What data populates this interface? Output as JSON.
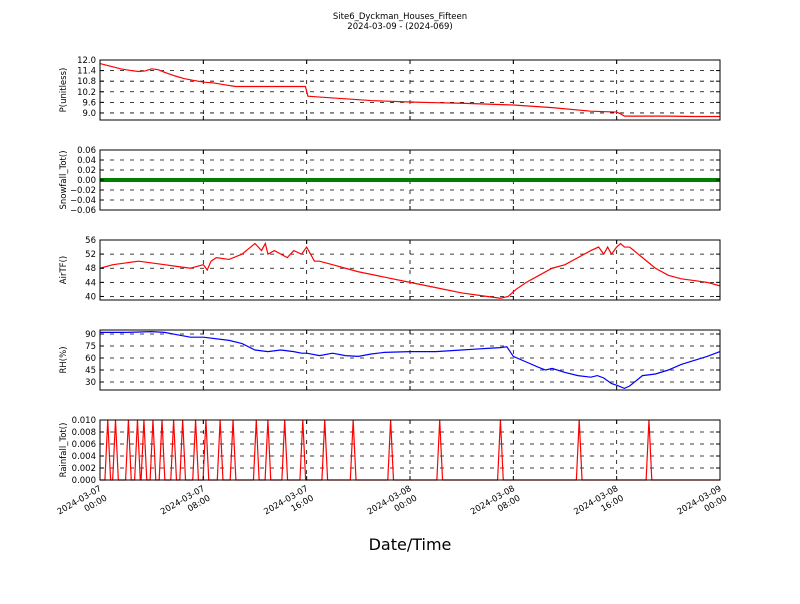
{
  "figure": {
    "title_line1": "Site6_Dyckman_Houses_Fifteen",
    "title_line2": "2024-03-09 - (2024-069)",
    "xlabel": "Date/Time",
    "x_ticks": [
      {
        "hour": 0,
        "line1": "2024-03-07",
        "line2": "00:00"
      },
      {
        "hour": 8,
        "line1": "2024-03-07",
        "line2": "08:00"
      },
      {
        "hour": 16,
        "line1": "2024-03-07",
        "line2": "16:00"
      },
      {
        "hour": 24,
        "line1": "2024-03-08",
        "line2": "00:00"
      },
      {
        "hour": 32,
        "line1": "2024-03-08",
        "line2": "08:00"
      },
      {
        "hour": 40,
        "line1": "2024-03-08",
        "line2": "16:00"
      },
      {
        "hour": 48,
        "line1": "2024-03-09",
        "line2": "00:00"
      }
    ]
  },
  "chart_data": [
    {
      "type": "line",
      "ylabel": "P(unitless)",
      "color": "#ff0000",
      "ylim": [
        8.6,
        12.0
      ],
      "yticks": [
        9.0,
        9.6,
        10.2,
        10.8,
        11.4,
        12.0
      ],
      "ytick_labels": [
        "9.0",
        "9.6",
        "10.2",
        "10.8",
        "11.4",
        "12.0"
      ],
      "x_hours": [
        0,
        0.8,
        1.6,
        2.4,
        3,
        3.5,
        4,
        4.5,
        5,
        5.8,
        6.5,
        7.2,
        8,
        8.8,
        9.6,
        10.5,
        12,
        14,
        15.9,
        16.1,
        17,
        19,
        21,
        24,
        26,
        28,
        30,
        32,
        35,
        38,
        40,
        40.3,
        40.6,
        41,
        44,
        46,
        48
      ],
      "values": [
        11.8,
        11.65,
        11.5,
        11.4,
        11.35,
        11.38,
        11.5,
        11.45,
        11.3,
        11.1,
        10.95,
        10.85,
        10.75,
        10.7,
        10.6,
        10.5,
        10.5,
        10.5,
        10.5,
        9.95,
        9.9,
        9.8,
        9.7,
        9.62,
        9.58,
        9.55,
        9.5,
        9.45,
        9.3,
        9.1,
        9.05,
        8.95,
        8.82,
        8.82,
        8.82,
        8.8,
        8.8
      ]
    },
    {
      "type": "line",
      "ylabel": "Snowfall_Tot()",
      "color": "#008000",
      "ylim": [
        -0.06,
        0.06
      ],
      "yticks": [
        -0.06,
        -0.04,
        -0.02,
        0.0,
        0.02,
        0.04,
        0.06
      ],
      "ytick_labels": [
        "−0.06",
        "−0.04",
        "−0.02",
        "0.00",
        "0.02",
        "0.04",
        "0.06"
      ],
      "x_hours": [
        0,
        48
      ],
      "values": [
        0,
        0
      ]
    },
    {
      "type": "line",
      "ylabel": "AirTF()",
      "color": "#ff0000",
      "ylim": [
        39,
        56
      ],
      "yticks": [
        40,
        44,
        48,
        52,
        56
      ],
      "ytick_labels": [
        "40",
        "44",
        "48",
        "52",
        "56"
      ],
      "x_hours": [
        0,
        1,
        2,
        3,
        4,
        5,
        6,
        7,
        7.5,
        8,
        8.3,
        8.6,
        9,
        10,
        11,
        12,
        12.5,
        12.8,
        13,
        13.5,
        14,
        14.5,
        15,
        15.6,
        16,
        16.3,
        16.6,
        17,
        18,
        19,
        20,
        22,
        24,
        26,
        28,
        30,
        31,
        31.6,
        32.2,
        33,
        34,
        35,
        36,
        37,
        38,
        38.6,
        39,
        39.3,
        39.6,
        40,
        40.3,
        40.6,
        41,
        42,
        43,
        44,
        45,
        46,
        47,
        48
      ],
      "values": [
        48,
        49,
        49.5,
        50,
        49.5,
        49,
        48.5,
        48,
        48.5,
        49,
        47.5,
        50,
        51,
        50.5,
        52,
        55,
        53,
        55,
        52,
        53,
        52,
        51,
        53,
        52,
        54,
        52,
        50,
        50,
        49,
        48,
        47,
        45.5,
        44,
        42.5,
        41,
        40,
        39.5,
        40,
        42,
        44,
        46,
        48,
        49,
        51,
        53,
        54,
        52,
        54,
        52,
        54,
        55,
        54,
        54,
        51,
        48,
        46,
        45,
        44.5,
        44,
        43
      ]
    },
    {
      "type": "line",
      "ylabel": "RH(%)",
      "color": "#0000ff",
      "ylim": [
        20,
        95
      ],
      "yticks": [
        30,
        45,
        60,
        75,
        90
      ],
      "ytick_labels": [
        "30",
        "45",
        "60",
        "75",
        "90"
      ],
      "x_hours": [
        0,
        2,
        4,
        5,
        6,
        7,
        8,
        10,
        11,
        12,
        13,
        14,
        15,
        15.6,
        16,
        17,
        18,
        19,
        20,
        21,
        22,
        24,
        26,
        28,
        29,
        30,
        31,
        31.5,
        32,
        33,
        34,
        34.5,
        35,
        36,
        37,
        38,
        38.5,
        39,
        39.6,
        40,
        40.6,
        41,
        42,
        43,
        44,
        45,
        46,
        47,
        48
      ],
      "values": [
        92,
        92,
        93,
        92,
        89,
        86,
        86,
        82,
        78,
        70,
        68,
        70,
        68,
        66,
        66,
        63,
        66,
        63,
        62,
        65,
        67,
        68,
        68,
        70,
        71,
        72,
        73,
        74,
        62,
        55,
        48,
        45,
        47,
        42,
        38,
        36,
        38,
        35,
        28,
        26,
        22,
        25,
        38,
        40,
        45,
        52,
        57,
        62,
        68
      ]
    },
    {
      "type": "line",
      "ylabel": "Rainfall_Tot()",
      "color": "#ff0000",
      "ylim": [
        0.0,
        0.01
      ],
      "yticks": [
        0.0,
        0.002,
        0.004,
        0.006,
        0.008,
        0.01
      ],
      "ytick_labels": [
        "0.000",
        "0.002",
        "0.004",
        "0.006",
        "0.008",
        "0.010"
      ],
      "spike_hours": [
        0.6,
        1.2,
        2.2,
        2.9,
        3.4,
        4.1,
        4.8,
        5.7,
        6.4,
        7.4,
        8.2,
        9.3,
        10.3,
        12.1,
        13.0,
        14.3,
        15.7,
        17.4,
        19.6,
        22.5,
        26.3,
        31.0,
        37.1,
        42.5
      ],
      "spike_value": 0.01,
      "spike_halfwidth_hours": 0.22
    }
  ]
}
